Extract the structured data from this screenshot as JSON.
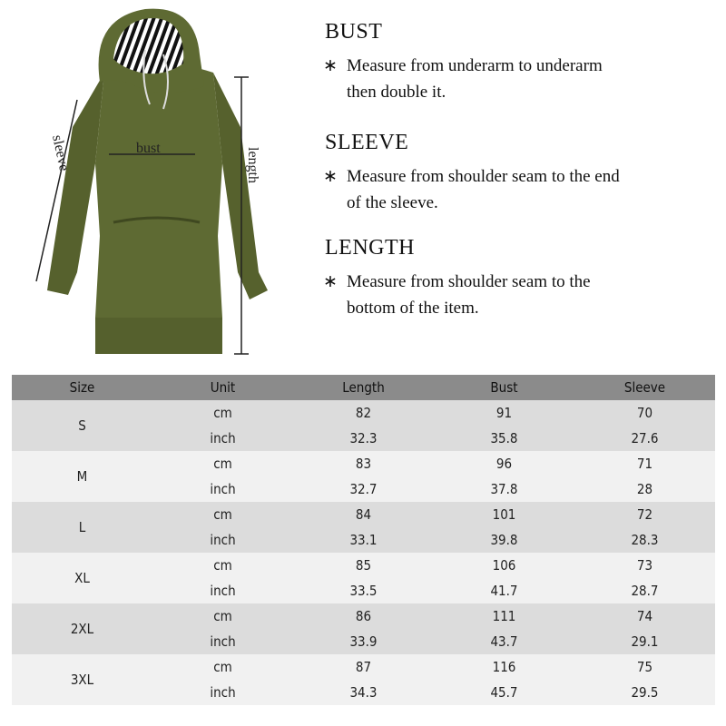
{
  "illustration": {
    "labels": {
      "sleeve": "sleeve",
      "bust": "bust",
      "length": "length"
    },
    "garment_color": "#5e6a33"
  },
  "guide": [
    {
      "title": "BUST",
      "lines": [
        "Measure from underarm to underarm",
        "then double it."
      ]
    },
    {
      "title": "SLEEVE",
      "lines": [
        "Measure from shoulder seam to the end",
        "of the sleeve."
      ]
    },
    {
      "title": "LENGTH",
      "lines": [
        "Measure from shoulder seam to the",
        "bottom of the item."
      ]
    }
  ],
  "bullet": "∗",
  "table": {
    "headers": [
      "Size",
      "Unit",
      "Length",
      "Bust",
      "Sleeve"
    ],
    "rows": [
      {
        "size": "S",
        "cm": [
          "82",
          "91",
          "70"
        ],
        "inch": [
          "32.3",
          "35.8",
          "27.6"
        ]
      },
      {
        "size": "M",
        "cm": [
          "83",
          "96",
          "71"
        ],
        "inch": [
          "32.7",
          "37.8",
          "28"
        ]
      },
      {
        "size": "L",
        "cm": [
          "84",
          "101",
          "72"
        ],
        "inch": [
          "33.1",
          "39.8",
          "28.3"
        ]
      },
      {
        "size": "XL",
        "cm": [
          "85",
          "106",
          "73"
        ],
        "inch": [
          "33.5",
          "41.7",
          "28.7"
        ]
      },
      {
        "size": "2XL",
        "cm": [
          "86",
          "111",
          "74"
        ],
        "inch": [
          "33.9",
          "43.7",
          "29.1"
        ]
      },
      {
        "size": "3XL",
        "cm": [
          "87",
          "116",
          "75"
        ],
        "inch": [
          "34.3",
          "45.7",
          "29.5"
        ]
      }
    ],
    "units": {
      "cm": "cm",
      "inch": "inch"
    }
  }
}
